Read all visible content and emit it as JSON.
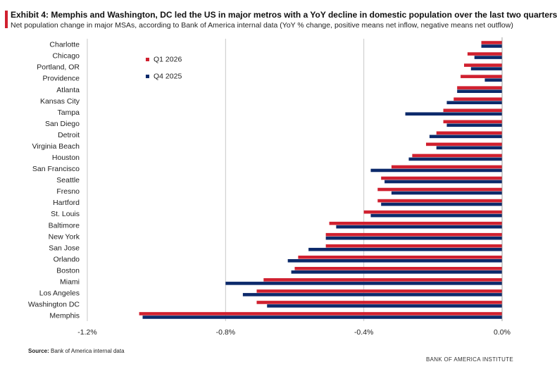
{
  "header": {
    "title": "Exhibit 4: Memphis and Washington, DC led the US in major metros with a YoY decline in domestic population over the last two quarters",
    "subtitle": "Net population change in major MSAs, according to Bank of America internal data (YoY % change, positive means net inflow, negative means net outflow)"
  },
  "footer": {
    "source_label": "Source:",
    "source_text": " Bank of America internal data",
    "brand": "BANK OF AMERICA INSTITUTE"
  },
  "colors": {
    "q1_2026": "#d0202f",
    "q4_2025": "#0c2a6b",
    "grid": "#c8c8c8"
  },
  "chart_data": {
    "type": "bar",
    "orientation": "horizontal",
    "title": "",
    "xlabel": "",
    "ylabel": "",
    "xlim": [
      -1.2,
      0.0
    ],
    "x_ticks": [
      -1.2,
      -0.8,
      -0.4,
      0.0
    ],
    "x_tick_labels": [
      "-1.2%",
      "-0.8%",
      "-0.4%",
      "0.0%"
    ],
    "grid": "vertical",
    "legend_position": "top-left",
    "categories": [
      "Charlotte",
      "Chicago",
      "Portland, OR",
      "Providence",
      "Atlanta",
      "Kansas City",
      "Tampa",
      "San Diego",
      "Detroit",
      "Virginia Beach",
      "Houston",
      "San Francisco",
      "Seattle",
      "Fresno",
      "Hartford",
      "St. Louis",
      "Baltimore",
      "New York",
      "San Jose",
      "Orlando",
      "Boston",
      "Miami",
      "Los Angeles",
      "Washington DC",
      "Memphis"
    ],
    "series": [
      {
        "name": "Q1 2026",
        "color": "#d0202f",
        "values": [
          -0.06,
          -0.1,
          -0.11,
          -0.12,
          -0.13,
          -0.14,
          -0.17,
          -0.17,
          -0.19,
          -0.22,
          -0.26,
          -0.32,
          -0.35,
          -0.36,
          -0.36,
          -0.4,
          -0.5,
          -0.51,
          -0.51,
          -0.59,
          -0.6,
          -0.69,
          -0.71,
          -0.71,
          -1.05
        ]
      },
      {
        "name": "Q4 2025",
        "color": "#0c2a6b",
        "values": [
          -0.06,
          -0.08,
          -0.09,
          -0.05,
          -0.13,
          -0.16,
          -0.28,
          -0.16,
          -0.21,
          -0.19,
          -0.27,
          -0.38,
          -0.34,
          -0.32,
          -0.35,
          -0.38,
          -0.48,
          -0.51,
          -0.56,
          -0.62,
          -0.61,
          -0.8,
          -0.75,
          -0.68,
          -1.04
        ]
      }
    ]
  }
}
